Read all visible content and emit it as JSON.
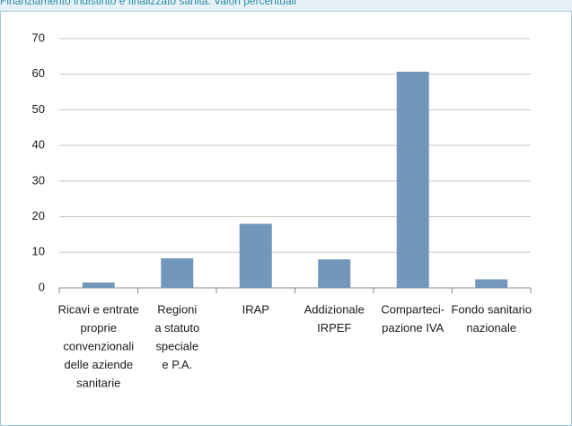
{
  "chart_data": {
    "type": "bar",
    "title": "Finanziamento indistinto e finalizzato sanità. Valori percentuali",
    "categories": [
      [
        "Ricavi e entrate",
        "proprie",
        "convenzionali",
        "delle aziende",
        "sanitarie"
      ],
      [
        "Regioni",
        "a statuto",
        "speciale",
        "e P.A."
      ],
      [
        "IRAP"
      ],
      [
        "Addizionale",
        "IRPEF"
      ],
      [
        "Comparteci-",
        "pazione IVA"
      ],
      [
        "Fondo sanitario",
        "nazionale"
      ]
    ],
    "values": [
      1.5,
      8.3,
      18,
      8,
      60.7,
      2.4
    ],
    "color": "#7396bb",
    "ylim": [
      0,
      70
    ],
    "yticks": [
      0,
      10,
      20,
      30,
      40,
      50,
      60,
      70
    ],
    "grid": true
  }
}
